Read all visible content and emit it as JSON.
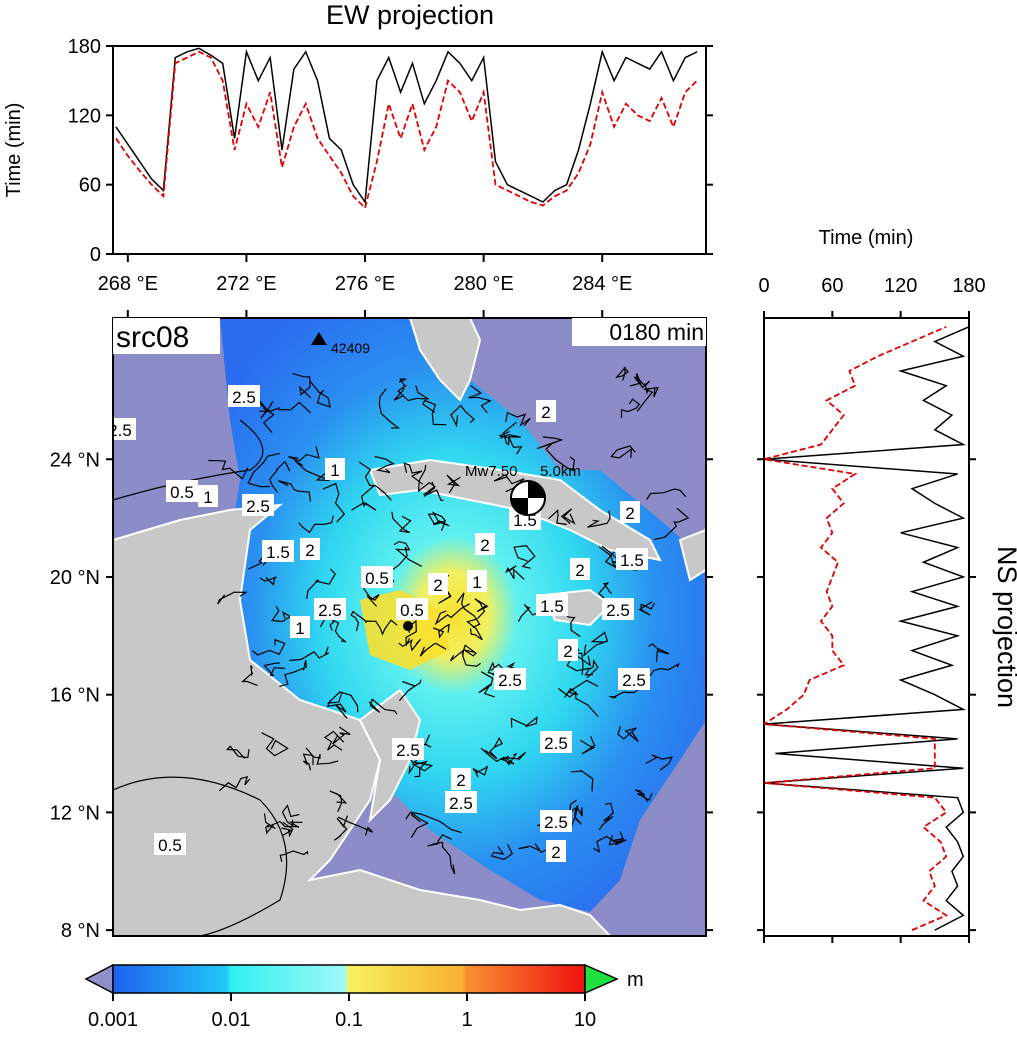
{
  "ew_panel": {
    "title": "EW projection",
    "ylabel": "Time (min)",
    "yticks": [
      "0",
      "60",
      "120",
      "180"
    ],
    "xticks": [
      "268 °E",
      "272 °E",
      "276 °E",
      "280 °E",
      "284 °E"
    ]
  },
  "ns_panel": {
    "title": "NS projection",
    "xlabel": "Time (min)",
    "xticks": [
      "0",
      "60",
      "120",
      "180"
    ]
  },
  "map": {
    "source_label": "src08",
    "time_label": "0180 min",
    "event_label": "Mw7.50",
    "depth_label": "5.0km",
    "station_label": "42409",
    "yticks": [
      "8 °N",
      "12 °N",
      "16 °N",
      "20 °N",
      "24 °N"
    ],
    "contour_labels": [
      "0.5",
      "1",
      "1.5",
      "2",
      "2.5",
      "0.5",
      "1",
      "1.5",
      "2",
      "2.5",
      "2",
      "2.5",
      "2.5",
      "2",
      "2.5",
      "0.5",
      "1",
      "1.5",
      "2",
      "2.5",
      "2",
      "2.5",
      "2.5",
      "2",
      "2.5",
      "2",
      "2.5",
      "1",
      "2",
      "0.5",
      "2.5",
      "1.5"
    ],
    "colors": {
      "ocean_far": "#8c8cc8",
      "land": "#c8c8c8",
      "wave_low": "#2a6cf0",
      "wave_mid": "#30e0f0",
      "wave_high": "#f8e030"
    }
  },
  "colorbar": {
    "unit": "m",
    "ticks": [
      "0.001",
      "0.01",
      "0.1",
      "1",
      "10"
    ]
  },
  "chart_data": [
    {
      "type": "line",
      "title": "EW projection",
      "ylabel": "Time (min)",
      "xlim": [
        267.5,
        287.5
      ],
      "ylim": [
        0,
        180
      ],
      "series": [
        {
          "color": "#000000",
          "x": [
            267.6,
            268.0,
            268.4,
            268.8,
            269.2,
            269.6,
            270.0,
            270.4,
            270.8,
            271.2,
            271.6,
            272.0,
            272.4,
            272.8,
            273.2,
            273.6,
            274.0,
            274.4,
            274.8,
            275.2,
            275.6,
            276.0,
            276.4,
            276.8,
            277.2,
            277.6,
            278.0,
            278.4,
            278.8,
            279.2,
            279.6,
            280.0,
            280.4,
            280.8,
            281.2,
            281.6,
            282.0,
            282.4,
            282.8,
            283.2,
            283.6,
            284.0,
            284.4,
            284.8,
            285.2,
            285.6,
            286.0,
            286.4,
            286.8,
            287.2
          ],
          "y": [
            110,
            95,
            80,
            65,
            55,
            170,
            175,
            178,
            172,
            165,
            100,
            175,
            150,
            170,
            90,
            160,
            175,
            150,
            100,
            90,
            60,
            45,
            150,
            170,
            140,
            165,
            130,
            150,
            175,
            165,
            150,
            170,
            80,
            60,
            55,
            50,
            45,
            55,
            60,
            90,
            130,
            175,
            150,
            170,
            165,
            160,
            175,
            150,
            170,
            175
          ]
        },
        {
          "color": "#e00000",
          "x": [
            267.6,
            268.0,
            268.4,
            268.8,
            269.2,
            269.6,
            270.0,
            270.4,
            270.8,
            271.2,
            271.6,
            272.0,
            272.4,
            272.8,
            273.2,
            273.6,
            274.0,
            274.4,
            274.8,
            275.2,
            275.6,
            276.0,
            276.4,
            276.8,
            277.2,
            277.6,
            278.0,
            278.4,
            278.8,
            279.2,
            279.6,
            280.0,
            280.4,
            280.8,
            281.2,
            281.6,
            282.0,
            282.4,
            282.8,
            283.2,
            283.6,
            284.0,
            284.4,
            284.8,
            285.2,
            285.6,
            286.0,
            286.4,
            286.8,
            287.2
          ],
          "y": [
            100,
            85,
            72,
            60,
            50,
            165,
            170,
            175,
            170,
            150,
            90,
            130,
            110,
            140,
            75,
            110,
            130,
            100,
            85,
            70,
            50,
            40,
            80,
            130,
            100,
            130,
            90,
            110,
            150,
            140,
            115,
            140,
            60,
            55,
            50,
            45,
            42,
            50,
            55,
            70,
            95,
            140,
            110,
            130,
            120,
            115,
            135,
            110,
            140,
            150
          ]
        }
      ]
    },
    {
      "type": "line",
      "title": "NS projection",
      "xlabel": "Time (min)",
      "xlim": [
        0,
        180
      ],
      "ylim": [
        7.8,
        28.8
      ],
      "series": [
        {
          "color": "#000000",
          "y": [
            8.0,
            8.5,
            9.0,
            9.5,
            10.0,
            10.5,
            11.0,
            11.5,
            12.0,
            12.5,
            13.0,
            13.5,
            14.0,
            14.5,
            15.0,
            15.5,
            16.0,
            16.5,
            17.0,
            17.5,
            18.0,
            18.5,
            19.0,
            19.5,
            20.0,
            20.5,
            21.0,
            21.5,
            22.0,
            22.5,
            23.0,
            23.5,
            24.0,
            24.5,
            25.0,
            25.5,
            26.0,
            26.5,
            27.0,
            27.5,
            28.0,
            28.5
          ],
          "x": [
            150,
            175,
            160,
            170,
            165,
            175,
            170,
            160,
            175,
            170,
            0,
            175,
            10,
            170,
            0,
            175,
            150,
            120,
            165,
            130,
            170,
            120,
            170,
            130,
            175,
            140,
            170,
            120,
            175,
            150,
            130,
            170,
            0,
            175,
            150,
            165,
            140,
            160,
            120,
            175,
            150,
            180
          ]
        },
        {
          "color": "#e00000",
          "y": [
            8.0,
            8.5,
            9.0,
            9.5,
            10.0,
            10.5,
            11.0,
            11.5,
            12.0,
            12.5,
            13.0,
            13.5,
            14.0,
            14.5,
            15.0,
            15.5,
            16.0,
            16.5,
            17.0,
            17.5,
            18.0,
            18.5,
            19.0,
            19.5,
            20.0,
            20.5,
            21.0,
            21.5,
            22.0,
            22.5,
            23.0,
            23.5,
            24.0,
            24.5,
            25.0,
            25.5,
            26.0,
            26.5,
            27.0,
            27.5,
            28.0,
            28.5
          ],
          "x": [
            130,
            160,
            140,
            150,
            145,
            160,
            155,
            140,
            160,
            150,
            0,
            150,
            150,
            150,
            0,
            20,
            35,
            40,
            70,
            60,
            60,
            50,
            60,
            55,
            60,
            65,
            50,
            60,
            55,
            70,
            60,
            80,
            0,
            50,
            60,
            70,
            55,
            80,
            75,
            100,
            130,
            160
          ]
        }
      ]
    }
  ]
}
